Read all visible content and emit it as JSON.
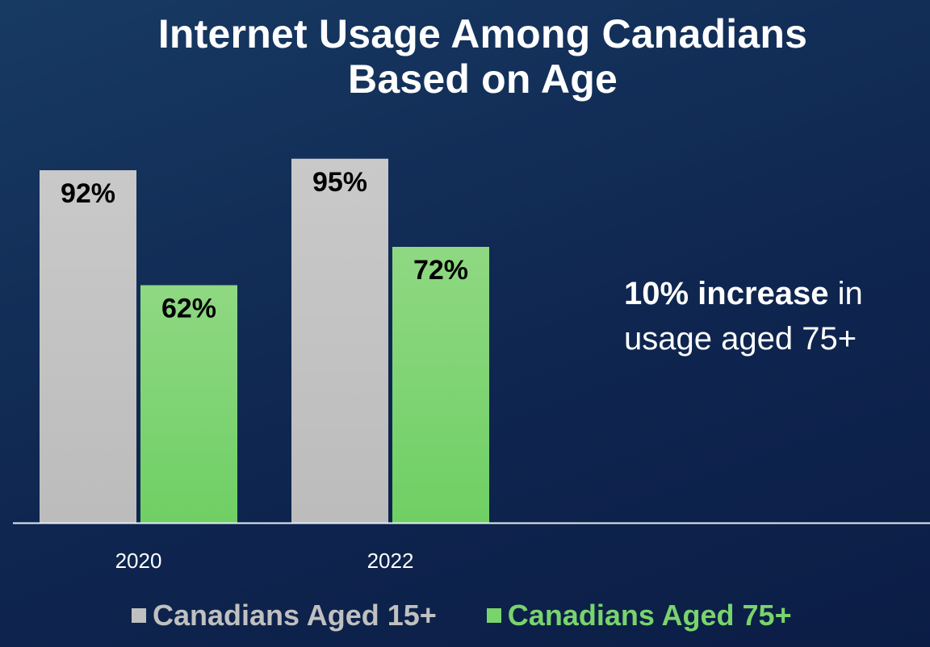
{
  "title_line1": "Internet Usage Among Canadians",
  "title_line2": "Based on Age",
  "annotation": {
    "bold": "10% increase",
    "rest1": " in",
    "line2": "usage aged 75+"
  },
  "colors": {
    "series1": "#c0c0c0",
    "series2": "#79d46c",
    "axis": "#e6ecf5",
    "label": "#000000",
    "tick": "#ffffff"
  },
  "chart_data": {
    "type": "bar",
    "categories": [
      "2020",
      "2022"
    ],
    "series": [
      {
        "name": "Canadians Aged 15+",
        "values": [
          92,
          95
        ],
        "labels": [
          "92%",
          "95%"
        ]
      },
      {
        "name": "Canadians Aged 75+",
        "values": [
          62,
          72
        ],
        "labels": [
          "62%",
          "72%"
        ]
      }
    ],
    "ylim": [
      0,
      100
    ],
    "grid": false,
    "legend_position": "bottom"
  }
}
